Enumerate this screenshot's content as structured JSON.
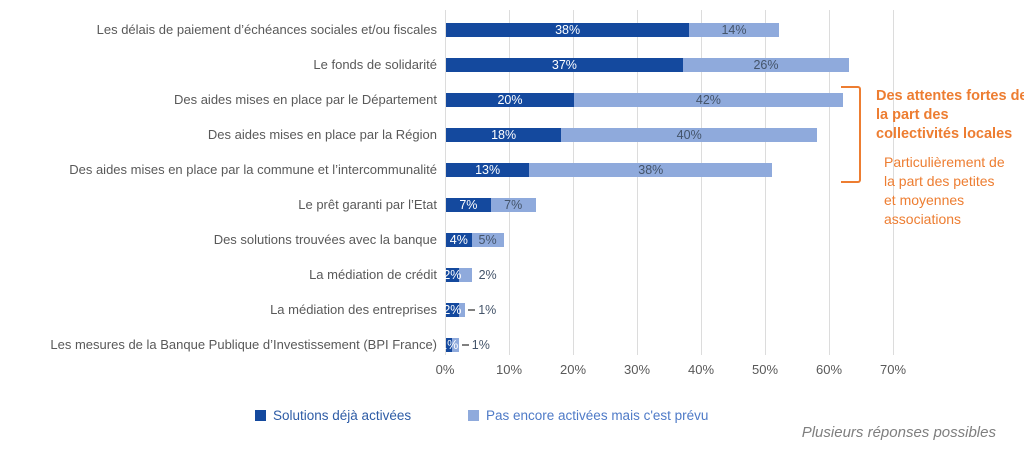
{
  "chart_data": {
    "type": "bar",
    "orientation": "horizontal",
    "stacked": true,
    "categories": [
      "Les délais de paiement d’échéances sociales et/ou fiscales",
      "Le fonds de solidarité",
      "Des aides mises en place par le Département",
      "Des aides mises en place par la Région",
      "Des aides mises en place par la commune et l’intercommunalité",
      "Le prêt garanti par l’Etat",
      "Des solutions trouvées avec la banque",
      "La médiation de crédit",
      "La médiation des entreprises",
      "Les mesures de la Banque Publique d’Investissement (BPI France)"
    ],
    "series": [
      {
        "name": "Solutions déjà activées",
        "color": "#14499E",
        "label_color": "#FFFFFF",
        "values": [
          38,
          37,
          20,
          18,
          13,
          7,
          4,
          2,
          2,
          1
        ]
      },
      {
        "name": "Pas encore activées mais c'est prévu",
        "color": "#8FAADC",
        "label_color": "#44546A",
        "values": [
          14,
          26,
          42,
          40,
          38,
          7,
          5,
          2,
          1,
          1
        ]
      }
    ],
    "xlim": [
      0,
      70
    ],
    "x_ticks": [
      "0%",
      "10%",
      "20%",
      "30%",
      "40%",
      "50%",
      "60%",
      "70%"
    ],
    "grid": "vertical",
    "legend_position": "bottom",
    "data_labels": "percent-inside",
    "outside_label_rows": [
      7,
      8,
      9
    ],
    "leader_line_rows": [
      8,
      9
    ]
  },
  "annotation": {
    "bold_text": "Des attentes fortes de la part des collectivités locales",
    "regular_text": "Particulièrement de la part des petites et moyennes associations",
    "color": "#ED7D31",
    "bracket_covers_rows": [
      2,
      3,
      4
    ]
  },
  "legend": {
    "text_colors": [
      "#2E5CA6",
      "#4E7AC7"
    ]
  },
  "footnote": "Plusieurs réponses possibles",
  "colors": {
    "background": "#FFFFFF",
    "gridline": "#DCDCDC",
    "category_label": "#595959",
    "axis_tick": "#595959",
    "outside_label": "#44546A",
    "leader_line": "#808080"
  }
}
